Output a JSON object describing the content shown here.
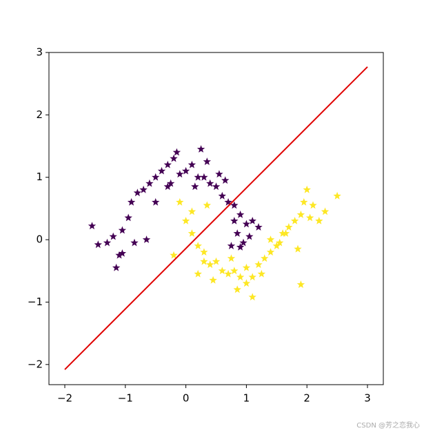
{
  "chart_data": {
    "type": "scatter",
    "xlim": [
      -2.262,
      3.262
    ],
    "ylim": [
      -2.323,
      3.0
    ],
    "xticks": [
      {
        "value": -2,
        "label": "−2"
      },
      {
        "value": -1,
        "label": "−1"
      },
      0,
      1,
      2,
      3
    ],
    "yticks": [
      {
        "value": -2,
        "label": "−2"
      },
      {
        "value": -1,
        "label": "−1"
      },
      0,
      1,
      2,
      3
    ],
    "marker": "star",
    "series": [
      {
        "color": "#440154",
        "x": [
          -1.05,
          -0.95,
          -1.2,
          -0.9,
          -0.8,
          -0.7,
          -1.3,
          -1.1,
          -0.85,
          -0.6,
          -0.5,
          -0.4,
          -0.3,
          -0.2,
          -0.1,
          0.0,
          0.1,
          0.2,
          0.3,
          0.4,
          0.5,
          0.6,
          0.7,
          0.8,
          0.9,
          1.0,
          1.05,
          0.95,
          1.1,
          0.85,
          0.75,
          -0.5,
          -0.3,
          0.25,
          0.55,
          -1.55,
          -1.45,
          -1.15,
          -1.05,
          -0.65,
          0.15,
          -0.15,
          0.65,
          1.2,
          0.9,
          0.8,
          -0.25,
          0.35
        ],
        "y": [
          0.15,
          0.35,
          0.05,
          0.6,
          0.75,
          0.8,
          -0.05,
          -0.25,
          -0.05,
          0.9,
          1.0,
          1.1,
          1.2,
          1.3,
          1.05,
          1.1,
          1.2,
          1.0,
          1.0,
          0.9,
          0.85,
          0.7,
          0.6,
          0.55,
          0.4,
          0.25,
          0.05,
          -0.05,
          0.3,
          0.1,
          -0.1,
          0.6,
          0.85,
          1.45,
          1.05,
          0.22,
          -0.08,
          -0.45,
          -0.22,
          0.0,
          0.85,
          1.4,
          0.95,
          0.2,
          -0.12,
          0.3,
          0.9,
          1.25
        ]
      },
      {
        "color": "#fde725",
        "x": [
          -0.1,
          0.0,
          0.1,
          0.2,
          0.3,
          0.4,
          0.5,
          0.6,
          0.7,
          0.8,
          0.9,
          1.0,
          1.1,
          1.2,
          1.3,
          1.4,
          1.5,
          1.6,
          1.7,
          1.8,
          1.9,
          2.0,
          2.1,
          2.05,
          1.95,
          2.2,
          2.5,
          2.3,
          0.2,
          0.45,
          0.85,
          1.1,
          1.25,
          1.55,
          1.85,
          1.9,
          0.1,
          0.35,
          0.75,
          1.4,
          -0.2,
          0.3,
          1.0,
          1.65
        ],
        "y": [
          0.6,
          0.3,
          0.1,
          -0.1,
          -0.2,
          -0.4,
          -0.35,
          -0.5,
          -0.55,
          -0.5,
          -0.6,
          -0.45,
          -0.6,
          -0.4,
          -0.3,
          -0.2,
          -0.1,
          0.1,
          0.2,
          0.3,
          0.4,
          0.8,
          0.55,
          0.35,
          0.6,
          0.3,
          0.7,
          0.45,
          -0.55,
          -0.65,
          -0.8,
          -0.92,
          -0.55,
          -0.05,
          -0.15,
          -0.72,
          0.45,
          0.55,
          -0.3,
          0.0,
          -0.25,
          -0.35,
          -0.7,
          0.1
        ]
      }
    ],
    "line": {
      "color": "#e00000",
      "x": [
        -2,
        3
      ],
      "y": [
        -2.08,
        2.77
      ]
    },
    "watermark": "CSDN @芳之恋我心"
  }
}
